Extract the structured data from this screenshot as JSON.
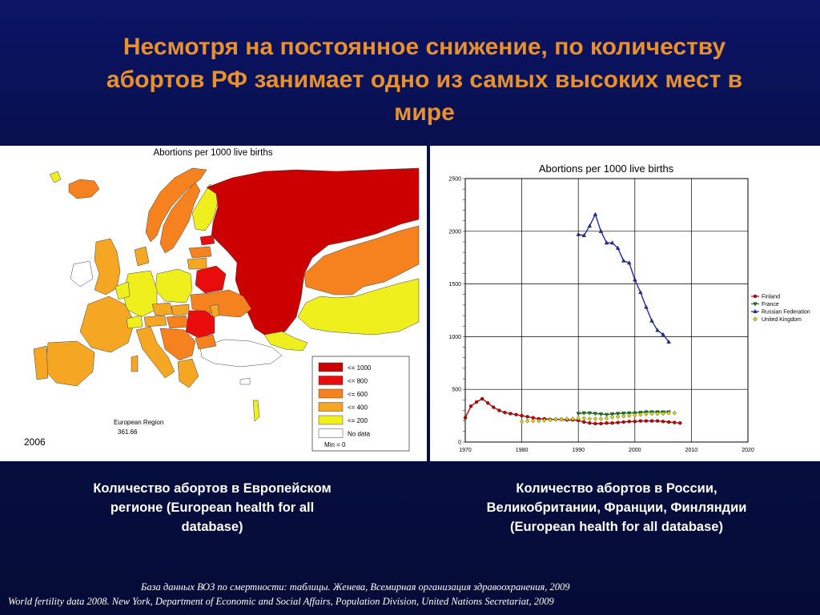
{
  "slide": {
    "title_lines": [
      "Несмотря на постоянное снижение, по количеству",
      "абортов РФ занимает одно из самых высоких мест в",
      "мире"
    ],
    "caption_left_lines": [
      "Количество абортов в Европейском",
      "регионе (European health for all",
      "database)"
    ],
    "caption_right_lines": [
      "Количество абортов в России,",
      "Великобритании, Франции, Финляндии",
      "(European health for all database)"
    ],
    "source_1": "База данных ВОЗ по смертности: таблицы. Женева, Всемирная организация здравоохранения, 2009",
    "source_2": "World fertility data 2008. New York, Department of Economic and Social Affairs, Population Division, United Nations  Secretariat, 2009",
    "colors": {
      "background": "#071045",
      "title": "#e8902a"
    }
  },
  "map": {
    "title": "Abortions per 1000 live births",
    "year": "2006",
    "region_label": "European Region",
    "region_value": "361.66",
    "min_label": "Min = 0",
    "legend": [
      {
        "label": "<= 1000",
        "color": "#cc0000"
      },
      {
        "label": "<= 800",
        "color": "#e80c0c"
      },
      {
        "label": "<= 600",
        "color": "#f5821f"
      },
      {
        "label": "<= 400",
        "color": "#f5a623"
      },
      {
        "label": "<= 200",
        "color": "#f0ef1e"
      },
      {
        "label": "No data",
        "color": "#ffffff"
      }
    ]
  },
  "chart_data": {
    "type": "line",
    "title": "Abortions per 1000 live births",
    "xlim": [
      1970,
      2020
    ],
    "ylim": [
      0,
      2500
    ],
    "xticks": [
      1970,
      1980,
      1990,
      2000,
      2010,
      2020
    ],
    "yticks": [
      0,
      500,
      1000,
      1500,
      2000,
      2500
    ],
    "grid": true,
    "legend_position": "right",
    "series": [
      {
        "name": "Finland",
        "color": "#cc0000",
        "marker": "circle",
        "x": [
          1970,
          1971,
          1972,
          1973,
          1974,
          1975,
          1976,
          1977,
          1978,
          1979,
          1980,
          1981,
          1982,
          1983,
          1984,
          1985,
          1986,
          1987,
          1988,
          1989,
          1990,
          1991,
          1992,
          1993,
          1994,
          1995,
          1996,
          1997,
          1998,
          1999,
          2000,
          2001,
          2002,
          2003,
          2004,
          2005,
          2006,
          2007,
          2008
        ],
        "values": [
          230,
          340,
          380,
          410,
          370,
          330,
          300,
          280,
          270,
          260,
          250,
          240,
          230,
          220,
          220,
          215,
          215,
          215,
          210,
          210,
          205,
          190,
          180,
          175,
          175,
          180,
          180,
          185,
          190,
          195,
          195,
          200,
          200,
          200,
          200,
          195,
          190,
          185,
          180
        ]
      },
      {
        "name": "France",
        "color": "#1a7a1a",
        "marker": "triangle-down",
        "x": [
          1990,
          1991,
          1992,
          1993,
          1994,
          1995,
          1996,
          1997,
          1998,
          1999,
          2000,
          2001,
          2002,
          2003,
          2004,
          2005,
          2006
        ],
        "values": [
          270,
          275,
          275,
          270,
          265,
          260,
          265,
          270,
          272,
          275,
          275,
          280,
          285,
          285,
          285,
          285,
          285
        ]
      },
      {
        "name": "Russian Federation",
        "color": "#1a2aa6",
        "marker": "triangle-up",
        "x": [
          1990,
          1991,
          1992,
          1993,
          1994,
          1995,
          1996,
          1997,
          1998,
          1999,
          2000,
          2001,
          2002,
          2003,
          2004,
          2005,
          2006
        ],
        "values": [
          1970,
          1960,
          2050,
          2160,
          2000,
          1890,
          1890,
          1840,
          1720,
          1700,
          1540,
          1420,
          1280,
          1150,
          1060,
          1020,
          950
        ]
      },
      {
        "name": "United Kingdom",
        "color": "#d8d800",
        "marker": "diamond",
        "x": [
          1980,
          1981,
          1982,
          1983,
          1984,
          1985,
          1986,
          1987,
          1988,
          1989,
          1990,
          1991,
          1992,
          1993,
          1994,
          1995,
          1996,
          1997,
          1998,
          1999,
          2000,
          2001,
          2002,
          2003,
          2004,
          2005,
          2006,
          2007
        ],
        "values": [
          195,
          200,
          200,
          200,
          205,
          210,
          215,
          215,
          220,
          220,
          225,
          225,
          220,
          220,
          220,
          225,
          235,
          240,
          245,
          250,
          255,
          260,
          265,
          270,
          270,
          270,
          275,
          275
        ]
      }
    ]
  }
}
